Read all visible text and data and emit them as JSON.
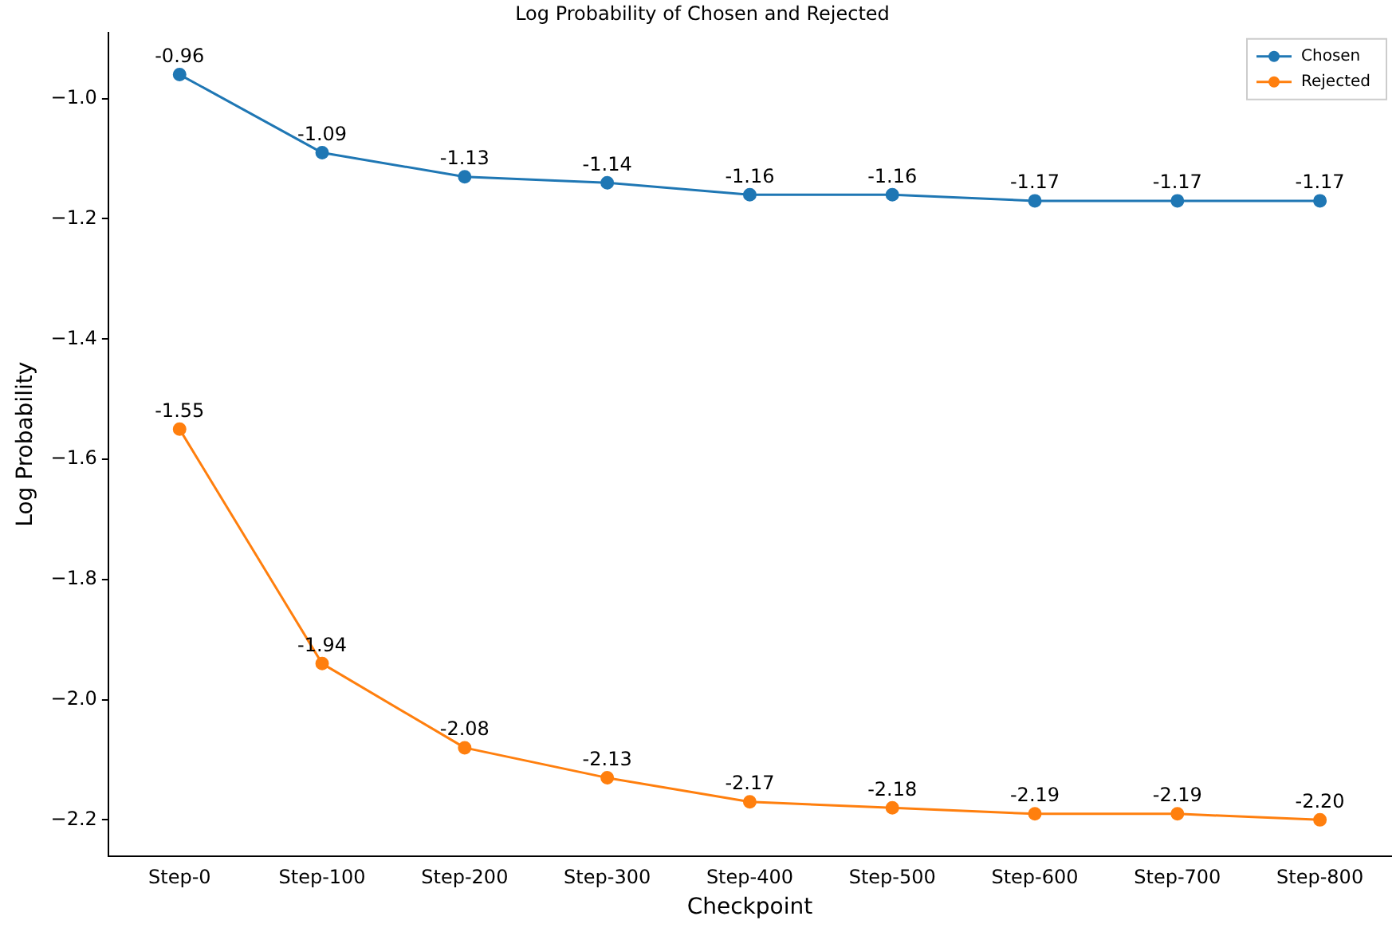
{
  "chart_data": {
    "type": "line",
    "title": "Log Probability of Chosen and Rejected",
    "xlabel": "Checkpoint",
    "ylabel": "Log Probability",
    "categories": [
      "Step-0",
      "Step-100",
      "Step-200",
      "Step-300",
      "Step-400",
      "Step-500",
      "Step-600",
      "Step-700",
      "Step-800"
    ],
    "series": [
      {
        "name": "Chosen",
        "color": "#1f77b4",
        "values": [
          -0.96,
          -1.09,
          -1.13,
          -1.14,
          -1.16,
          -1.16,
          -1.17,
          -1.17,
          -1.17
        ],
        "value_labels": [
          "-0.96",
          "-1.09",
          "-1.13",
          "-1.14",
          "-1.16",
          "-1.16",
          "-1.17",
          "-1.17",
          "-1.17"
        ]
      },
      {
        "name": "Rejected",
        "color": "#ff7f0e",
        "values": [
          -1.55,
          -1.94,
          -2.08,
          -2.13,
          -2.17,
          -2.18,
          -2.19,
          -2.19,
          -2.2
        ],
        "value_labels": [
          "-1.55",
          "-1.94",
          "-2.08",
          "-2.13",
          "-2.17",
          "-2.18",
          "-2.19",
          "-2.19",
          "-2.20"
        ]
      }
    ],
    "ylim": [
      -2.26,
      -0.89
    ],
    "yticks": [
      {
        "value": -2.2,
        "label": "−2.2"
      },
      {
        "value": -2.0,
        "label": "−2.0"
      },
      {
        "value": -1.8,
        "label": "−1.8"
      },
      {
        "value": -1.6,
        "label": "−1.6"
      },
      {
        "value": -1.4,
        "label": "−1.4"
      },
      {
        "value": -1.2,
        "label": "−1.2"
      },
      {
        "value": -1.0,
        "label": "−1.0"
      }
    ],
    "grid": false,
    "legend": "top right",
    "marker": "circle",
    "line_style": "solid"
  }
}
